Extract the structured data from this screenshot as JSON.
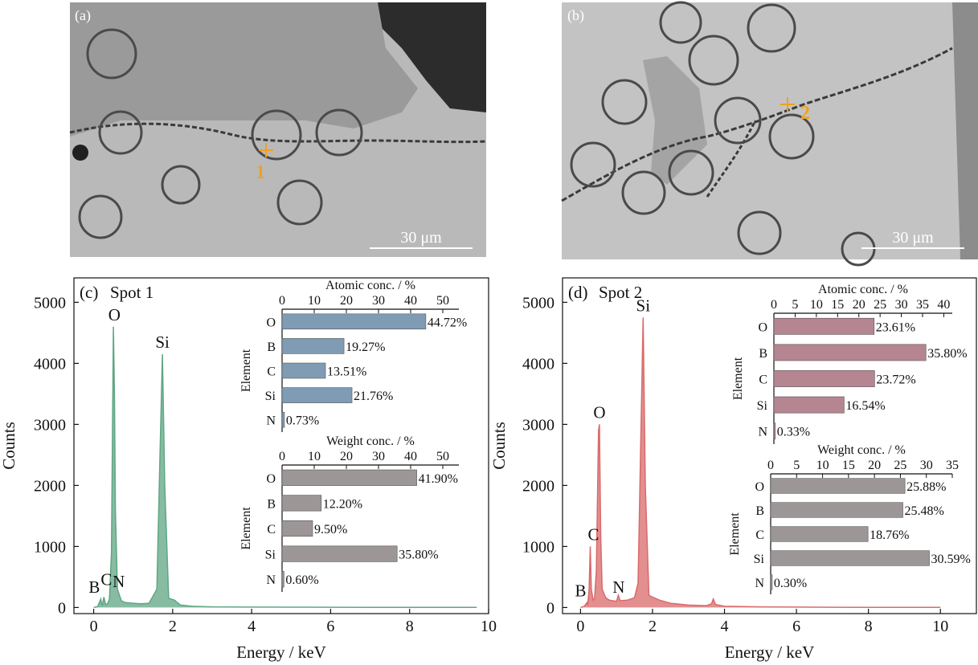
{
  "colors": {
    "spot1_spectrum": "#5fa684",
    "spot2_spectrum": "#d96a6a",
    "atomic_bar_spot1": "#7f9cb4",
    "atomic_bar_spot2": "#b68592",
    "weight_bar": "#9c9696",
    "marker": "#f0a020",
    "sem_background": "#b9b9b9"
  },
  "sem_panels": [
    {
      "label": "(a)",
      "spot_label": "1",
      "scalebar": "30 μm"
    },
    {
      "label": "(b)",
      "spot_label": "2",
      "scalebar": "30 μm"
    }
  ],
  "chart_data": [
    {
      "type": "line",
      "panel_label": "(c)",
      "title": "Spot 1",
      "xlabel": "Energy / keV",
      "ylabel": "Counts",
      "xlim": [
        -0.5,
        10
      ],
      "ylim": [
        -100,
        5400
      ],
      "xticks": [
        0,
        2,
        4,
        6,
        8,
        10
      ],
      "yticks": [
        0,
        1000,
        2000,
        3000,
        4000,
        5000
      ],
      "series": [
        {
          "x": [
            0.0,
            0.1,
            0.18,
            0.2,
            0.22,
            0.26,
            0.28,
            0.3,
            0.35,
            0.4,
            0.45,
            0.5,
            0.525,
            0.55,
            0.6,
            0.7,
            0.8,
            1.0,
            1.2,
            1.4,
            1.6,
            1.68,
            1.74,
            1.8,
            1.9,
            2.05,
            2.1,
            2.2,
            2.5,
            3.0,
            4.0,
            5.0,
            6.0,
            7.0,
            8.0,
            9.0,
            9.7
          ],
          "y": [
            0,
            15,
            140,
            60,
            40,
            170,
            110,
            50,
            60,
            140,
            900,
            4600,
            3500,
            1600,
            300,
            110,
            80,
            70,
            60,
            70,
            300,
            2500,
            4150,
            2000,
            150,
            120,
            90,
            40,
            20,
            10,
            6,
            5,
            4,
            3,
            3,
            2,
            2
          ]
        }
      ],
      "peaks": [
        {
          "element": "O",
          "x": 0.525,
          "y": 4600
        },
        {
          "element": "Si",
          "x": 1.74,
          "y": 4150
        },
        {
          "element": "B",
          "x": 0.18,
          "y": 140
        },
        {
          "element": "C",
          "x": 0.28,
          "y": 170
        },
        {
          "element": "N",
          "x": 0.39,
          "y": 140
        }
      ],
      "insets": [
        {
          "type": "bar",
          "xlabel": "Atomic conc. / %",
          "ylabel": "Element",
          "xlim": [
            0,
            55
          ],
          "xticks": [
            0,
            10,
            20,
            30,
            40,
            50
          ],
          "categories": [
            "O",
            "B",
            "C",
            "Si",
            "N"
          ],
          "values": [
            44.72,
            19.27,
            13.51,
            21.76,
            0.73
          ],
          "value_labels": [
            "44.72%",
            "19.27%",
            "13.51%",
            "21.76%",
            "0.73%"
          ]
        },
        {
          "type": "bar",
          "xlabel": "Weight conc. / %",
          "ylabel": "Element",
          "xlim": [
            0,
            55
          ],
          "xticks": [
            0,
            10,
            20,
            30,
            40,
            50
          ],
          "categories": [
            "O",
            "B",
            "C",
            "Si",
            "N"
          ],
          "values": [
            41.9,
            12.2,
            9.5,
            35.8,
            0.6
          ],
          "value_labels": [
            "41.90%",
            "12.20%",
            "9.50%",
            "35.80%",
            "0.60%"
          ]
        }
      ]
    },
    {
      "type": "line",
      "panel_label": "(d)",
      "title": "Spot 2",
      "xlabel": "Energy / keV",
      "ylabel": "Counts",
      "xlim": [
        -0.5,
        11
      ],
      "ylim": [
        -100,
        5400
      ],
      "xticks": [
        0,
        2,
        4,
        6,
        8,
        10
      ],
      "yticks": [
        0,
        1000,
        2000,
        3000,
        4000,
        5000
      ],
      "series": [
        {
          "x": [
            0.0,
            0.1,
            0.18,
            0.2,
            0.24,
            0.27,
            0.3,
            0.35,
            0.39,
            0.44,
            0.5,
            0.525,
            0.56,
            0.6,
            0.7,
            0.8,
            1.0,
            1.05,
            1.1,
            1.3,
            1.5,
            1.6,
            1.7,
            1.74,
            1.8,
            1.9,
            2.0,
            2.2,
            2.5,
            3.0,
            3.5,
            3.64,
            3.69,
            3.75,
            4.0,
            5.0,
            6.0,
            7.0,
            8.0,
            9.0,
            10.0
          ],
          "y": [
            0,
            20,
            80,
            40,
            300,
            1000,
            300,
            120,
            150,
            600,
            2900,
            3000,
            1200,
            300,
            160,
            120,
            100,
            200,
            110,
            120,
            160,
            400,
            3500,
            4750,
            2000,
            200,
            170,
            120,
            70,
            40,
            30,
            60,
            140,
            50,
            20,
            10,
            6,
            4,
            3,
            3,
            2
          ]
        }
      ],
      "peaks": [
        {
          "element": "Si",
          "x": 1.74,
          "y": 4750
        },
        {
          "element": "O",
          "x": 0.525,
          "y": 3000
        },
        {
          "element": "C",
          "x": 0.27,
          "y": 1000
        },
        {
          "element": "B",
          "x": 0.18,
          "y": 80
        },
        {
          "element": "N",
          "x": 0.39,
          "y": 150
        }
      ],
      "insets": [
        {
          "type": "bar",
          "xlabel": "Atomic conc. / %",
          "ylabel": "Element",
          "xlim": [
            0,
            42
          ],
          "xticks": [
            0,
            5,
            10,
            15,
            20,
            25,
            30,
            35,
            40
          ],
          "categories": [
            "O",
            "B",
            "C",
            "Si",
            "N"
          ],
          "values": [
            23.61,
            35.8,
            23.72,
            16.54,
            0.33
          ],
          "value_labels": [
            "23.61%",
            "35.80%",
            "23.72%",
            "16.54%",
            "0.33%"
          ]
        },
        {
          "type": "bar",
          "xlabel": "Weight conc. / %",
          "ylabel": "Element",
          "xlim": [
            0,
            35
          ],
          "xticks": [
            0,
            5,
            10,
            15,
            20,
            25,
            30,
            35
          ],
          "categories": [
            "O",
            "B",
            "C",
            "Si",
            "N"
          ],
          "values": [
            25.88,
            25.48,
            18.76,
            30.59,
            0.3
          ],
          "value_labels": [
            "25.88%",
            "25.48%",
            "18.76%",
            "30.59%",
            "0.30%"
          ]
        }
      ]
    }
  ]
}
